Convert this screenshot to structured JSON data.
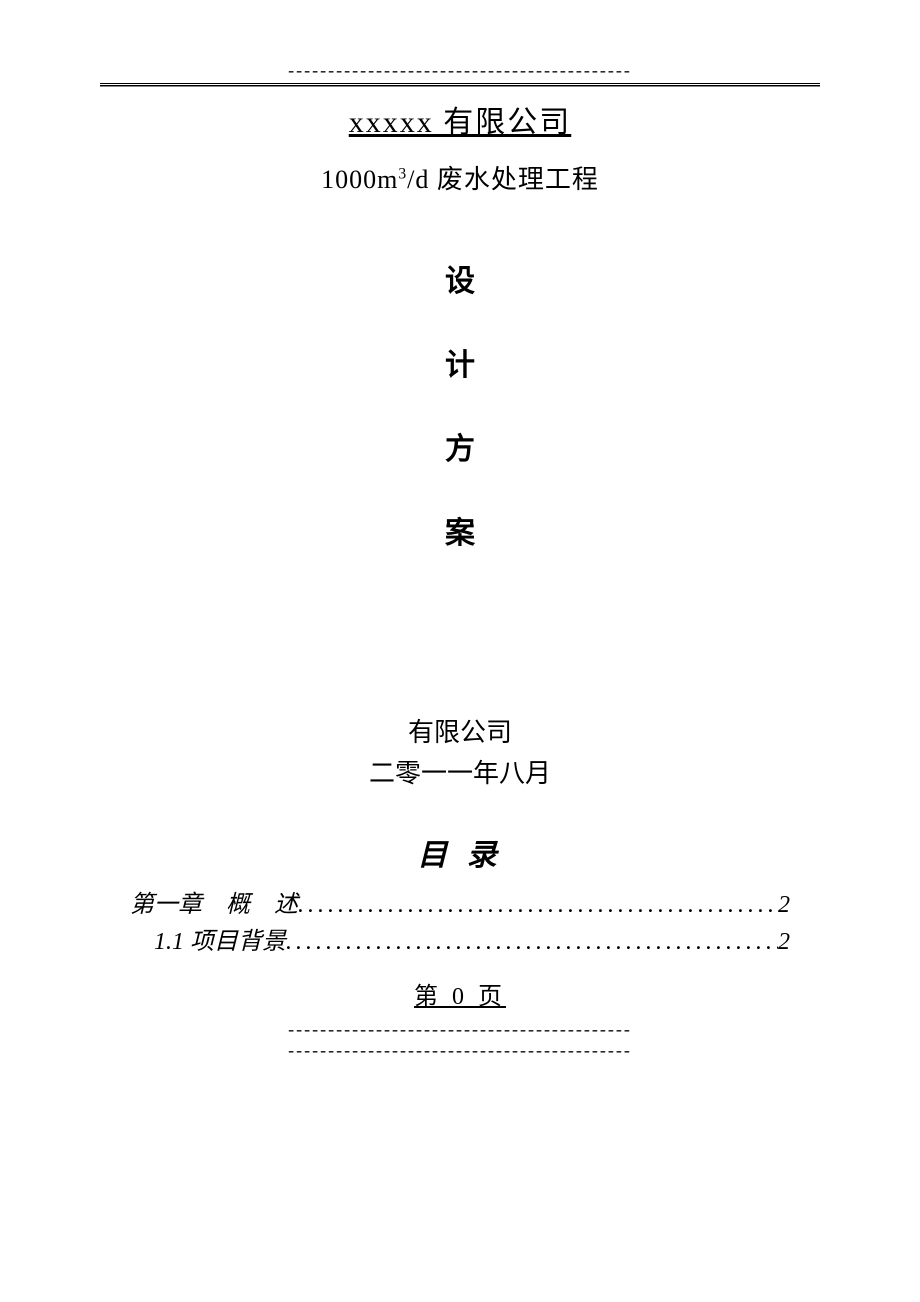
{
  "decor": {
    "top_dashes": "-------------------------------------------",
    "bottom_dashes_1": "-------------------------------------------",
    "bottom_dashes_2": "-------------------------------------------"
  },
  "header": {
    "company_title": "xxxxx 有限公司",
    "subtitle_prefix": "1000m",
    "subtitle_sup": "3",
    "subtitle_suffix": "/d 废水处理工程"
  },
  "vertical": {
    "c1": "设",
    "c2": "计",
    "c3": "方",
    "c4": "案"
  },
  "footer": {
    "company": "有限公司",
    "date": "二零一一年八月"
  },
  "toc": {
    "title": "目 录",
    "items": [
      {
        "label": "第一章 概 述",
        "page": "2",
        "indent": 0
      },
      {
        "label": " 1.1 项目背景",
        "page": "2",
        "indent": 0
      }
    ]
  },
  "page_number": "第 0 页"
}
